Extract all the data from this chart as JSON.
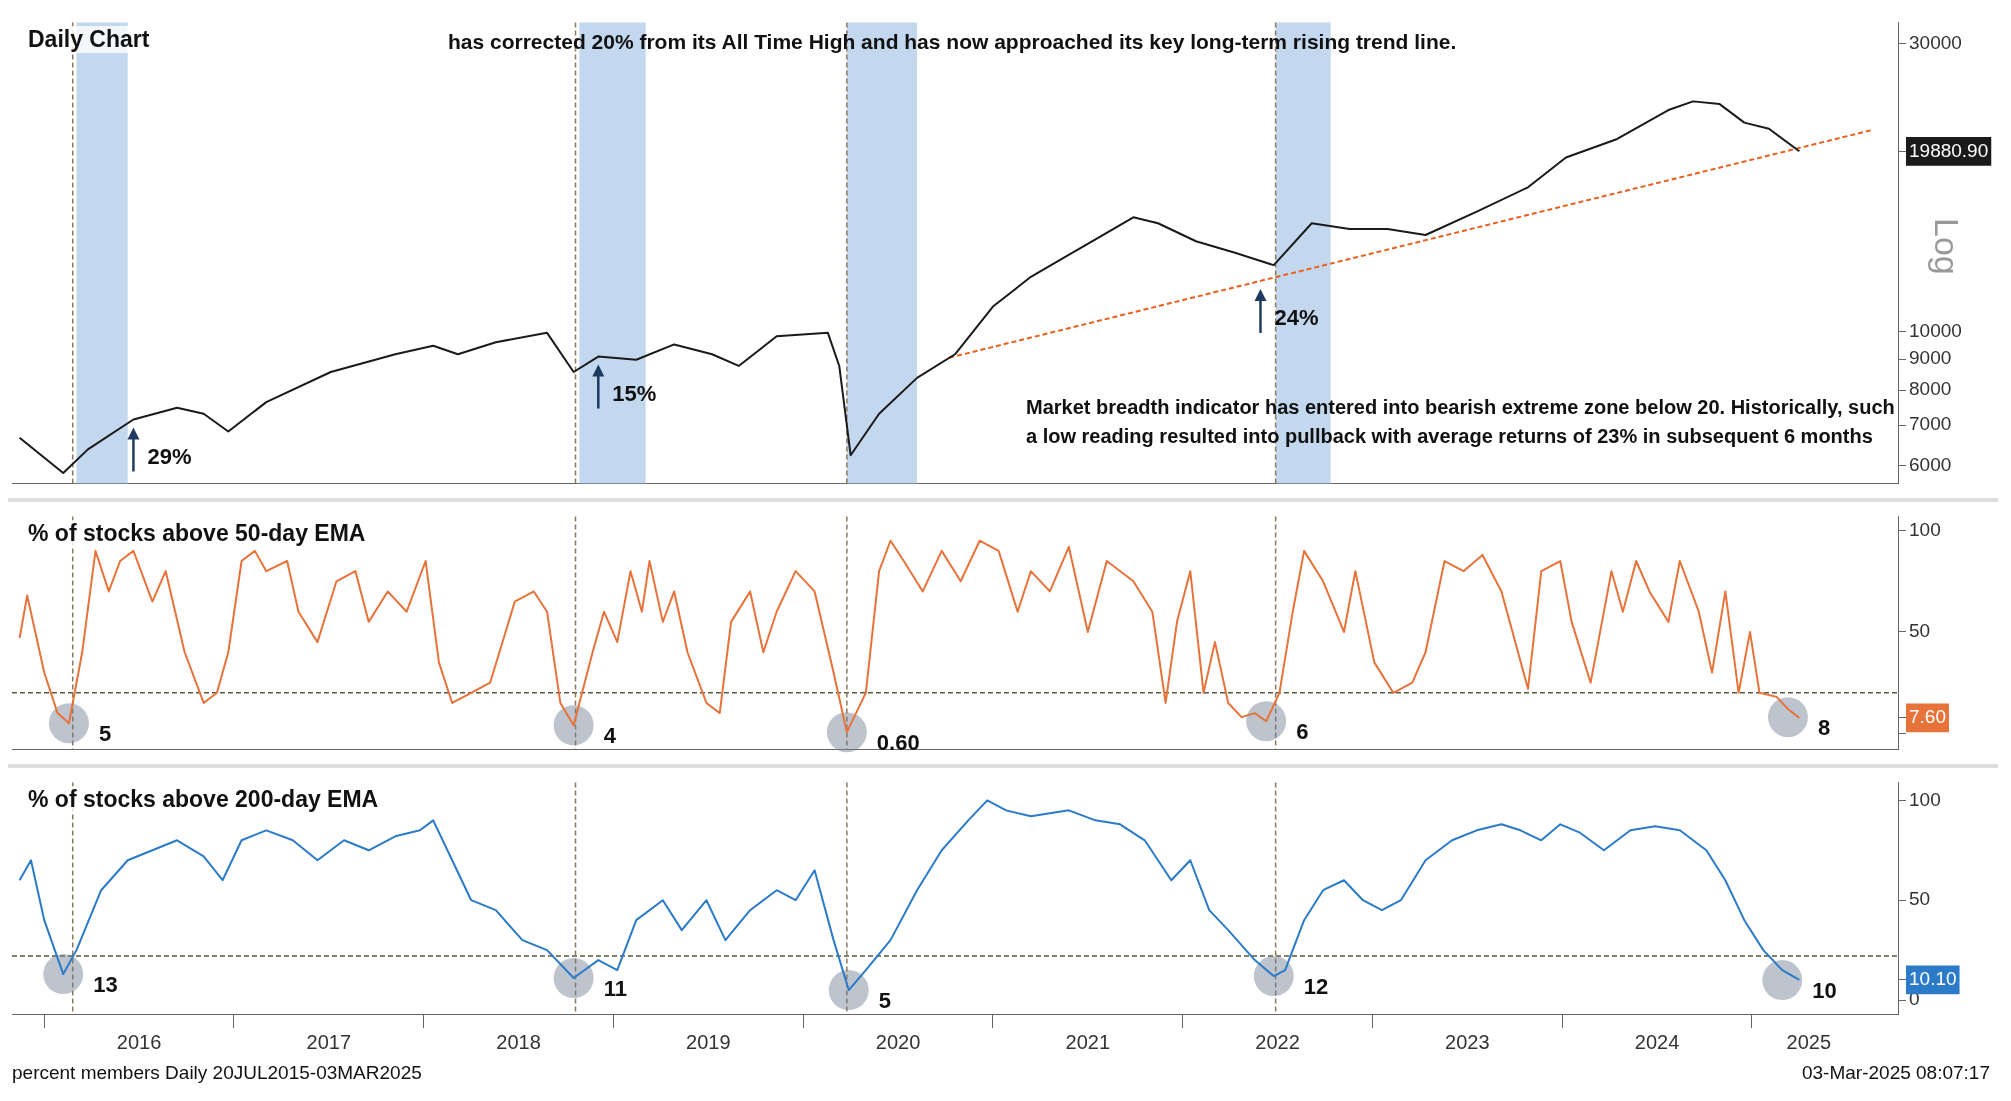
{
  "chart_data": [
    {
      "type": "line",
      "title": "Daily Chart",
      "log": "y",
      "marker": "none",
      "grid": false,
      "legend": false,
      "tick_labels": "y",
      "xlim": [
        2015.83,
        2025.77
      ],
      "ylim": [
        5600,
        32500
      ],
      "yticks": [
        6000,
        7000,
        8000,
        9000,
        10000,
        30000,
        {
          "value": 19880.9,
          "label": "19880.90"
        }
      ],
      "series": [
        {
          "color": "#1a1a1a",
          "x": [
            2015.87,
            2016.1,
            2016.23,
            2016.47,
            2016.7,
            2016.84,
            2016.97,
            2017.17,
            2017.51,
            2017.85,
            2018.05,
            2018.18,
            2018.38,
            2018.65,
            2018.79,
            2018.92,
            2019.12,
            2019.32,
            2019.52,
            2019.66,
            2019.86,
            2020.13,
            2020.19,
            2020.25,
            2020.4,
            2020.6,
            2020.8,
            2021.0,
            2021.2,
            2021.47,
            2021.74,
            2021.87,
            2022.07,
            2022.28,
            2022.48,
            2022.68,
            2022.88,
            2023.08,
            2023.28,
            2023.55,
            2023.82,
            2024.02,
            2024.29,
            2024.56,
            2024.69,
            2024.83,
            2024.96,
            2025.09,
            2025.25
          ],
          "values": [
            6670,
            5830,
            6380,
            7150,
            7480,
            7310,
            6830,
            7640,
            8570,
            9170,
            9470,
            9170,
            9600,
            9950,
            8570,
            9090,
            8980,
            9520,
            9170,
            8770,
            9820,
            9950,
            8770,
            6240,
            7310,
            8380,
            9170,
            11000,
            12320,
            13800,
            15460,
            15110,
            14110,
            13490,
            12880,
            15110,
            14780,
            14780,
            14450,
            15800,
            17330,
            19420,
            20840,
            23270,
            24050,
            23800,
            22180,
            21670,
            19880.9
          ]
        },
        {
          "type": "line",
          "color": "#e8601c",
          "line_style": "dashed",
          "x": [
            2020.77,
            2025.63
          ],
          "values": [
            9050,
            21550
          ]
        }
      ],
      "ref_lines": [
        {
          "axis": "x",
          "value": 2016.15,
          "color": "#8a7a5a",
          "line_style": "dashed"
        },
        {
          "axis": "x",
          "value": 2018.8,
          "color": "#8a7a5a",
          "line_style": "dashed"
        },
        {
          "axis": "x",
          "value": 2020.23,
          "color": "#8a7a5a",
          "line_style": "dashed"
        },
        {
          "axis": "x",
          "value": 2022.49,
          "color": "#8a7a5a",
          "line_style": "dashed"
        }
      ],
      "bands": [
        {
          "axis": "x",
          "from": 2016.17,
          "to": 2016.44,
          "color": "#a9c8e8"
        },
        {
          "axis": "x",
          "from": 2018.82,
          "to": 2019.17,
          "color": "#a9c8e8"
        },
        {
          "axis": "x",
          "from": 2020.23,
          "to": 2020.6,
          "color": "#a9c8e8"
        },
        {
          "axis": "x",
          "from": 2022.49,
          "to": 2022.78,
          "color": "#a9c8e8"
        }
      ],
      "annotations": [
        "has corrected 20% from its All Time High and has now approached its key long-term rising trend line.",
        "Market breadth indicator has entered into bearish extreme zone below 20. Historically, such a low reading resulted into pullback with average returns of 23% in subsequent 6 months",
        "Log",
        {
          "text": "29%",
          "x": 2016.47,
          "y": 7150
        },
        {
          "text": "15%",
          "x": 2018.92,
          "y": 9090
        },
        {
          "text": "24%",
          "x": 2022.41,
          "y": 12130
        }
      ]
    },
    {
      "type": "line",
      "title": "% of stocks above 50-day EMA",
      "marker": "none",
      "grid": false,
      "legend": false,
      "tick_labels": "y",
      "xlim": [
        2015.83,
        2025.77
      ],
      "ylim": [
        -8,
        107
      ],
      "yticks": [
        {
          "value": 0,
          "label": null
        },
        50,
        100,
        {
          "value": 7.6,
          "label": "7.60"
        }
      ],
      "series": [
        {
          "color": "#e8733a",
          "x": [
            2015.87,
            2015.91,
            2016.0,
            2016.07,
            2016.13,
            2016.2,
            2016.27,
            2016.34,
            2016.4,
            2016.47,
            2016.57,
            2016.64,
            2016.74,
            2016.84,
            2016.91,
            2016.97,
            2017.04,
            2017.11,
            2017.17,
            2017.28,
            2017.34,
            2017.44,
            2017.54,
            2017.64,
            2017.71,
            2017.81,
            2017.91,
            2018.01,
            2018.08,
            2018.15,
            2018.25,
            2018.35,
            2018.48,
            2018.58,
            2018.65,
            2018.72,
            2018.79,
            2018.89,
            2018.95,
            2019.02,
            2019.09,
            2019.15,
            2019.19,
            2019.26,
            2019.32,
            2019.39,
            2019.49,
            2019.56,
            2019.62,
            2019.72,
            2019.79,
            2019.86,
            2019.96,
            2020.06,
            2020.16,
            2020.23,
            2020.33,
            2020.4,
            2020.46,
            2020.53,
            2020.63,
            2020.73,
            2020.83,
            2020.93,
            2021.03,
            2021.13,
            2021.2,
            2021.3,
            2021.4,
            2021.5,
            2021.6,
            2021.74,
            2021.84,
            2021.91,
            2021.97,
            2022.04,
            2022.11,
            2022.17,
            2022.24,
            2022.31,
            2022.38,
            2022.44,
            2022.51,
            2022.58,
            2022.64,
            2022.74,
            2022.85,
            2022.91,
            2023.01,
            2023.11,
            2023.21,
            2023.28,
            2023.38,
            2023.48,
            2023.58,
            2023.68,
            2023.82,
            2023.89,
            2023.99,
            2024.05,
            2024.15,
            2024.26,
            2024.32,
            2024.39,
            2024.46,
            2024.56,
            2024.62,
            2024.72,
            2024.79,
            2024.86,
            2024.93,
            2024.99,
            2025.04,
            2025.13,
            2025.19,
            2025.25
          ],
          "values": [
            47,
            68,
            30,
            10,
            5,
            40,
            90,
            70,
            85,
            90,
            65,
            80,
            40,
            15,
            20,
            40,
            85,
            90,
            80,
            85,
            60,
            45,
            75,
            80,
            55,
            70,
            60,
            85,
            35,
            15,
            20,
            25,
            65,
            70,
            60,
            15,
            4,
            40,
            60,
            45,
            80,
            60,
            85,
            55,
            70,
            40,
            15,
            10,
            55,
            70,
            40,
            60,
            80,
            70,
            30,
            0.6,
            20,
            80,
            95,
            85,
            70,
            90,
            75,
            95,
            90,
            60,
            80,
            70,
            92,
            50,
            85,
            75,
            60,
            15,
            55,
            80,
            20,
            45,
            15,
            8,
            10,
            6,
            20,
            60,
            90,
            75,
            50,
            80,
            35,
            20,
            25,
            40,
            85,
            80,
            88,
            70,
            22,
            80,
            85,
            55,
            25,
            80,
            60,
            85,
            70,
            55,
            85,
            60,
            30,
            70,
            20,
            50,
            20,
            18,
            12,
            7.6
          ]
        }
      ],
      "ref_lines": [
        {
          "axis": "y",
          "value": 20,
          "color": "#5a5a3a",
          "line_style": "dashed"
        },
        {
          "axis": "x",
          "value": 2016.15,
          "color": "#8a7a5a",
          "line_style": "dashed"
        },
        {
          "axis": "x",
          "value": 2018.8,
          "color": "#8a7a5a",
          "line_style": "dashed"
        },
        {
          "axis": "x",
          "value": 2020.23,
          "color": "#8a7a5a",
          "line_style": "dashed"
        },
        {
          "axis": "x",
          "value": 2022.49,
          "color": "#8a7a5a",
          "line_style": "dashed"
        }
      ],
      "annotations": [
        {
          "text": "5",
          "x": 2016.13,
          "y": 5
        },
        {
          "text": "4",
          "x": 2018.79,
          "y": 4
        },
        {
          "text": "0.60",
          "x": 2020.23,
          "y": 0.6
        },
        {
          "text": "6",
          "x": 2022.44,
          "y": 6
        },
        {
          "text": "8",
          "x": 2025.19,
          "y": 8
        }
      ]
    },
    {
      "type": "line",
      "title": "% of stocks above 200-day EMA",
      "marker": "none",
      "grid": false,
      "legend": false,
      "xlim": [
        2015.83,
        2025.77
      ],
      "ylim": [
        -7,
        109
      ],
      "yticks": [
        0,
        50,
        100,
        {
          "value": 10.1,
          "label": "10.10"
        }
      ],
      "xticks": [
        {
          "value": 2016,
          "label": null
        },
        {
          "value": 2016.5,
          "label": "2016"
        },
        {
          "value": 2017,
          "label": null
        },
        {
          "value": 2017.5,
          "label": "2017"
        },
        {
          "value": 2018,
          "label": null
        },
        {
          "value": 2018.5,
          "label": "2018"
        },
        {
          "value": 2019,
          "label": null
        },
        {
          "value": 2019.5,
          "label": "2019"
        },
        {
          "value": 2020,
          "label": null
        },
        {
          "value": 2020.5,
          "label": "2020"
        },
        {
          "value": 2021,
          "label": null
        },
        {
          "value": 2021.5,
          "label": "2021"
        },
        {
          "value": 2022,
          "label": null
        },
        {
          "value": 2022.5,
          "label": "2022"
        },
        {
          "value": 2023,
          "label": null
        },
        {
          "value": 2023.5,
          "label": "2023"
        },
        {
          "value": 2024,
          "label": null
        },
        {
          "value": 2024.5,
          "label": "2024"
        },
        {
          "value": 2025,
          "label": null
        },
        {
          "value": 2025.3,
          "label": "2025"
        }
      ],
      "series": [
        {
          "color": "#2b7bc8",
          "x": [
            2015.87,
            2015.93,
            2016.0,
            2016.1,
            2016.17,
            2016.3,
            2016.44,
            2016.57,
            2016.7,
            2016.84,
            2016.94,
            2017.04,
            2017.17,
            2017.31,
            2017.44,
            2017.58,
            2017.71,
            2017.85,
            2017.98,
            2018.05,
            2018.15,
            2018.25,
            2018.38,
            2018.52,
            2018.65,
            2018.79,
            2018.92,
            2019.02,
            2019.12,
            2019.26,
            2019.36,
            2019.49,
            2019.59,
            2019.72,
            2019.86,
            2019.96,
            2020.06,
            2020.16,
            2020.24,
            2020.33,
            2020.46,
            2020.6,
            2020.73,
            2020.87,
            2020.97,
            2021.07,
            2021.2,
            2021.4,
            2021.54,
            2021.67,
            2021.8,
            2021.94,
            2022.04,
            2022.14,
            2022.24,
            2022.38,
            2022.48,
            2022.54,
            2022.64,
            2022.74,
            2022.85,
            2022.95,
            2023.05,
            2023.15,
            2023.28,
            2023.42,
            2023.55,
            2023.68,
            2023.78,
            2023.89,
            2023.99,
            2024.09,
            2024.22,
            2024.36,
            2024.49,
            2024.62,
            2024.76,
            2024.86,
            2024.96,
            2025.06,
            2025.16,
            2025.25
          ],
          "values": [
            60,
            70,
            40,
            13,
            25,
            55,
            70,
            75,
            80,
            72,
            60,
            80,
            85,
            80,
            70,
            80,
            75,
            82,
            85,
            90,
            70,
            50,
            45,
            30,
            25,
            11,
            20,
            15,
            40,
            50,
            35,
            50,
            30,
            45,
            55,
            50,
            65,
            30,
            5,
            15,
            30,
            55,
            75,
            90,
            100,
            95,
            92,
            95,
            90,
            88,
            80,
            60,
            70,
            45,
            35,
            20,
            12,
            15,
            40,
            55,
            60,
            50,
            45,
            50,
            70,
            80,
            85,
            88,
            85,
            80,
            88,
            84,
            75,
            85,
            87,
            85,
            75,
            60,
            40,
            25,
            15,
            10.1
          ]
        }
      ],
      "ref_lines": [
        {
          "axis": "y",
          "value": 22,
          "color": "#5a5a3a",
          "line_style": "dashed"
        },
        {
          "axis": "x",
          "value": 2016.15,
          "color": "#8a7a5a",
          "line_style": "dashed"
        },
        {
          "axis": "x",
          "value": 2018.8,
          "color": "#8a7a5a",
          "line_style": "dashed"
        },
        {
          "axis": "x",
          "value": 2020.23,
          "color": "#8a7a5a",
          "line_style": "dashed"
        },
        {
          "axis": "x",
          "value": 2022.49,
          "color": "#8a7a5a",
          "line_style": "dashed"
        }
      ],
      "annotations": [
        {
          "text": "13",
          "x": 2016.1,
          "y": 13
        },
        {
          "text": "11",
          "x": 2018.79,
          "y": 11
        },
        {
          "text": "5",
          "x": 2020.24,
          "y": 5
        },
        {
          "text": "12",
          "x": 2022.48,
          "y": 12
        },
        {
          "text": "10",
          "x": 2025.16,
          "y": 10
        },
        "percent members  Daily 20JUL2015-03MAR2025",
        "03-Mar-2025 08:07:17"
      ]
    }
  ]
}
